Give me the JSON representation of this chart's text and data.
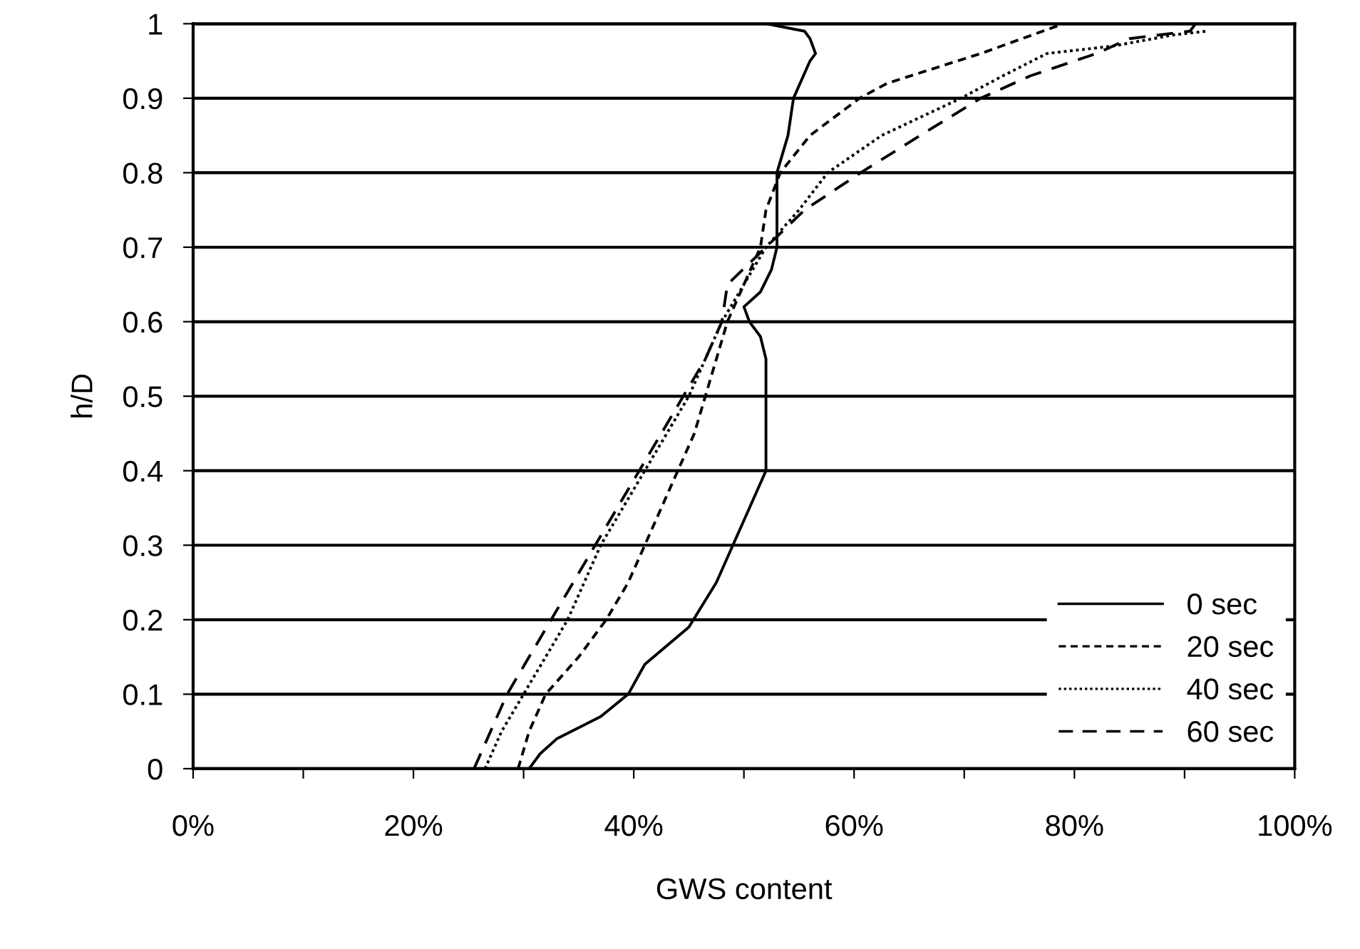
{
  "chart_data": {
    "type": "line",
    "xlabel": "GWS content",
    "ylabel": "h/D",
    "xlim": [
      0,
      100
    ],
    "ylim": [
      0,
      1
    ],
    "xticks": [
      {
        "value": 0,
        "label": "0%"
      },
      {
        "value": 10,
        "label": null
      },
      {
        "value": 20,
        "label": "20%"
      },
      {
        "value": 30,
        "label": null
      },
      {
        "value": 40,
        "label": "40%"
      },
      {
        "value": 50,
        "label": null
      },
      {
        "value": 60,
        "label": "60%"
      },
      {
        "value": 70,
        "label": null
      },
      {
        "value": 80,
        "label": "80%"
      },
      {
        "value": 90,
        "label": null
      },
      {
        "value": 100,
        "label": "100%"
      }
    ],
    "yticks": [
      0,
      0.1,
      0.2,
      0.3,
      0.4,
      0.5,
      0.6,
      0.7,
      0.8,
      0.9,
      1
    ],
    "grid": "y",
    "legend": "bottom right",
    "series": [
      {
        "name": "0 sec",
        "color": "#000000",
        "line_style": "solid",
        "x": [
          30.5,
          31.5,
          33,
          37,
          39.5,
          41,
          45,
          47.5,
          49,
          50.5,
          52,
          52,
          52,
          52,
          51.5,
          50.5,
          50,
          51.5,
          52.5,
          53,
          53,
          53,
          54,
          54.5,
          56,
          56.5,
          56,
          55.5,
          52
        ],
        "values": [
          0,
          0.02,
          0.04,
          0.07,
          0.1,
          0.14,
          0.19,
          0.25,
          0.3,
          0.35,
          0.4,
          0.45,
          0.5,
          0.55,
          0.58,
          0.6,
          0.62,
          0.64,
          0.67,
          0.7,
          0.75,
          0.8,
          0.85,
          0.9,
          0.95,
          0.96,
          0.98,
          0.99,
          1
        ]
      },
      {
        "name": "20 sec",
        "color": "#000000",
        "line_style": "dashed",
        "x": [
          29.5,
          30.5,
          32,
          35,
          37.5,
          39.5,
          41,
          42.5,
          44,
          45.5,
          46.5,
          47.5,
          48.5,
          50,
          51.5,
          52,
          53.3,
          56,
          60.5,
          63,
          71.5,
          79
        ],
        "values": [
          0,
          0.05,
          0.1,
          0.15,
          0.2,
          0.25,
          0.3,
          0.35,
          0.4,
          0.45,
          0.5,
          0.55,
          0.6,
          0.65,
          0.7,
          0.75,
          0.8,
          0.85,
          0.9,
          0.92,
          0.96,
          1
        ]
      },
      {
        "name": "40 sec",
        "color": "#000000",
        "line_style": "dotted",
        "x": [
          26.5,
          28,
          30,
          32,
          34,
          35.5,
          37,
          39,
          41,
          43,
          45,
          46.5,
          48,
          50,
          52,
          55,
          57.6,
          62.5,
          69.7,
          73.5,
          77.5,
          83.5,
          89,
          92
        ],
        "values": [
          0,
          0.05,
          0.1,
          0.15,
          0.2,
          0.25,
          0.3,
          0.35,
          0.4,
          0.45,
          0.5,
          0.55,
          0.6,
          0.65,
          0.7,
          0.75,
          0.8,
          0.85,
          0.9,
          0.93,
          0.96,
          0.97,
          0.985,
          0.99
        ]
      },
      {
        "name": "60 sec",
        "color": "#000000",
        "line_style": "longdash",
        "x": [
          25.5,
          27,
          28.5,
          30.5,
          32.5,
          34.5,
          36.5,
          38.5,
          40.5,
          42.5,
          44.5,
          46.5,
          48,
          48.5,
          52,
          55.5,
          60.6,
          66,
          71.5,
          76,
          82,
          85,
          90.5,
          91
        ],
        "values": [
          0,
          0.05,
          0.1,
          0.15,
          0.2,
          0.25,
          0.3,
          0.35,
          0.4,
          0.45,
          0.5,
          0.55,
          0.6,
          0.65,
          0.7,
          0.75,
          0.8,
          0.85,
          0.9,
          0.93,
          0.96,
          0.98,
          0.99,
          1
        ]
      }
    ]
  }
}
